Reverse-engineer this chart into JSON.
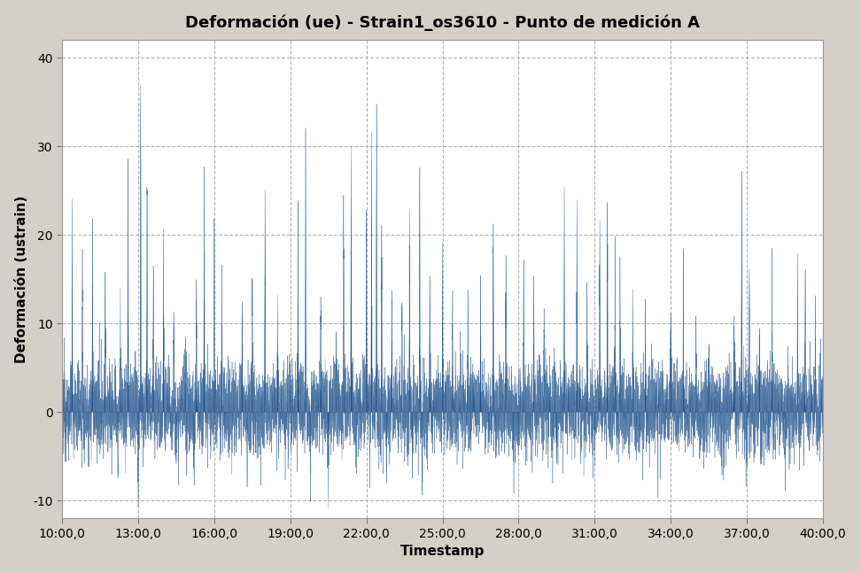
{
  "title": "Deformación (ue) - Strain1_os3610 - Punto de medición A",
  "xlabel": "Timestamp",
  "ylabel": "Deformación (ustrain)",
  "xlim": [
    10.0,
    40.0
  ],
  "ylim": [
    -12,
    42
  ],
  "yticks": [
    -10,
    0,
    10,
    20,
    30,
    40
  ],
  "xtick_labels": [
    "10:00,0",
    "13:00,0",
    "16:00,0",
    "19:00,0",
    "22:00,0",
    "25:00,0",
    "28:00,0",
    "31:00,0",
    "34:00,0",
    "37:00,0",
    "40:00,0"
  ],
  "xtick_positions": [
    10,
    13,
    16,
    19,
    22,
    25,
    28,
    31,
    34,
    37,
    40
  ],
  "line_color": "#1b4f8a",
  "background_color": "#d4d0c8",
  "plot_bg_color": "#ffffff",
  "title_fontsize": 13,
  "axis_label_fontsize": 11,
  "tick_fontsize": 10,
  "grid_color": "#aaaaaa",
  "grid_linestyle": "--",
  "seed": 12345,
  "n_points": 8000
}
